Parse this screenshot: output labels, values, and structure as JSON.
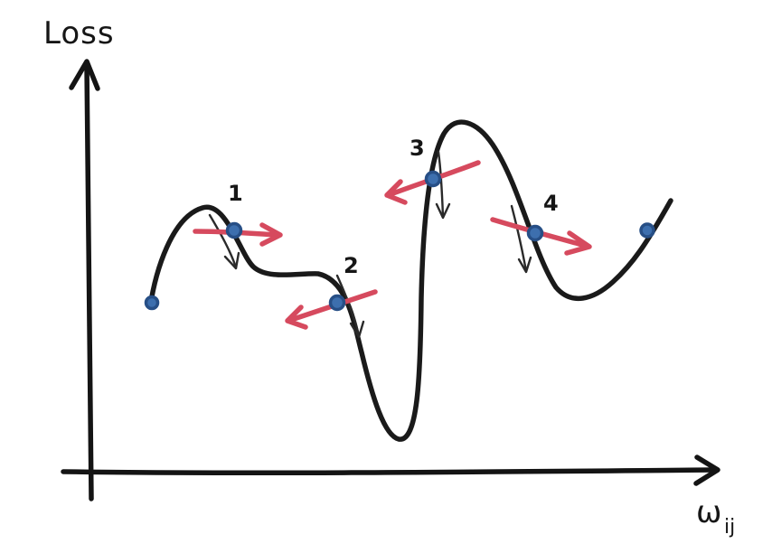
{
  "axes": {
    "y_label": "Loss",
    "x_label": "ω",
    "x_label_subscript": "ij"
  },
  "points": [
    {
      "label": "",
      "role": "endpoint"
    },
    {
      "label": "1",
      "role": "step"
    },
    {
      "label": "2",
      "role": "step"
    },
    {
      "label": "3",
      "role": "step"
    },
    {
      "label": "4",
      "role": "step"
    },
    {
      "label": "",
      "role": "endpoint"
    }
  ],
  "colors": {
    "curve": "#1a1a1a",
    "axes": "#141414",
    "point_fill": "#3d6fae",
    "point_stroke": "#274f86",
    "step_arrow": "#d64a5e",
    "gradient_arrow": "#2a2a2a"
  }
}
